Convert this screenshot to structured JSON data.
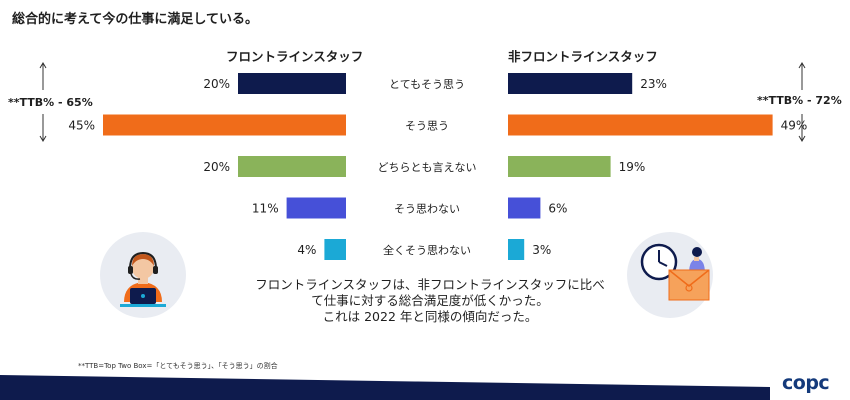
{
  "title": "総合的に考えて今の仕事に満足している。",
  "groups": {
    "left": "フロントラインスタッフ",
    "right": "非フロントラインスタッフ"
  },
  "ttb": {
    "left": "**TTB% - 65%",
    "right": "**TTB% - 72%"
  },
  "summary": {
    "line1": "フロントラインスタッフは、非フロントラインスタッフに比べ",
    "line2": "て仕事に対する総合満足度が低くかった。",
    "line3": "これは 2022 年と同様の傾向だった。"
  },
  "footnote": "**TTB=Top Two Box=「とてもそう思う」、「そう思う」の割合",
  "logo_text": "copc",
  "colors": {
    "navy": "#0e1b4d",
    "orange": "#f06c1a",
    "green": "#8ab35a",
    "purple": "#4650d8",
    "teal": "#1ba9d6",
    "circle": "#e9ecf2",
    "logo": "#143a7b"
  },
  "illustrations": {
    "left": "headset-agent-icon",
    "right": "clock-and-envelope-icon"
  },
  "chart_data": {
    "type": "bar",
    "orientation": "horizontal-butterfly",
    "categories": [
      "とてもそう思う",
      "そう思う",
      "どちらとも言えない",
      "そう思わない",
      "全くそう思わない"
    ],
    "series": [
      {
        "name": "フロントラインスタッフ",
        "values": [
          20,
          45,
          20,
          11,
          4
        ],
        "labels": [
          "20%",
          "45%",
          "20%",
          "11%",
          "4%"
        ]
      },
      {
        "name": "非フロントラインスタッフ",
        "values": [
          23,
          49,
          19,
          6,
          3
        ],
        "labels": [
          "23%",
          "49%",
          "19%",
          "6%",
          "3%"
        ]
      }
    ],
    "category_colors": [
      "#0e1b4d",
      "#f06c1a",
      "#8ab35a",
      "#4650d8",
      "#1ba9d6"
    ],
    "unit": "%"
  }
}
